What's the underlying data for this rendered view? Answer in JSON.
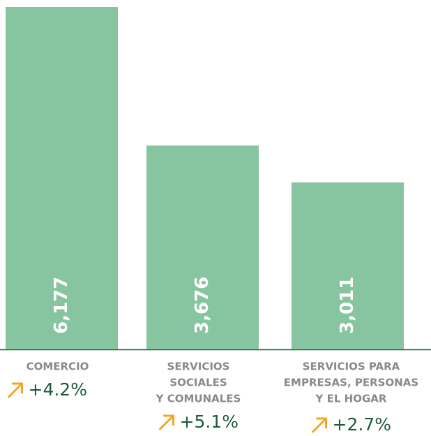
{
  "chart_data": {
    "type": "bar",
    "categories": [
      [
        "COMERCIO"
      ],
      [
        "SERVICIOS",
        "SOCIALES",
        "Y COMUNALES"
      ],
      [
        "SERVICIOS PARA",
        "EMPRESAS, PERSONAS",
        "Y EL HOGAR"
      ]
    ],
    "values": [
      6177,
      3676,
      3011
    ],
    "value_labels": [
      "6,177",
      "3,676",
      "3,011"
    ],
    "changes": [
      4.2,
      5.1,
      2.7
    ],
    "change_labels": [
      "+4.2%",
      "+5.1%",
      "+2.7%"
    ],
    "color": "#86c5a0"
  }
}
